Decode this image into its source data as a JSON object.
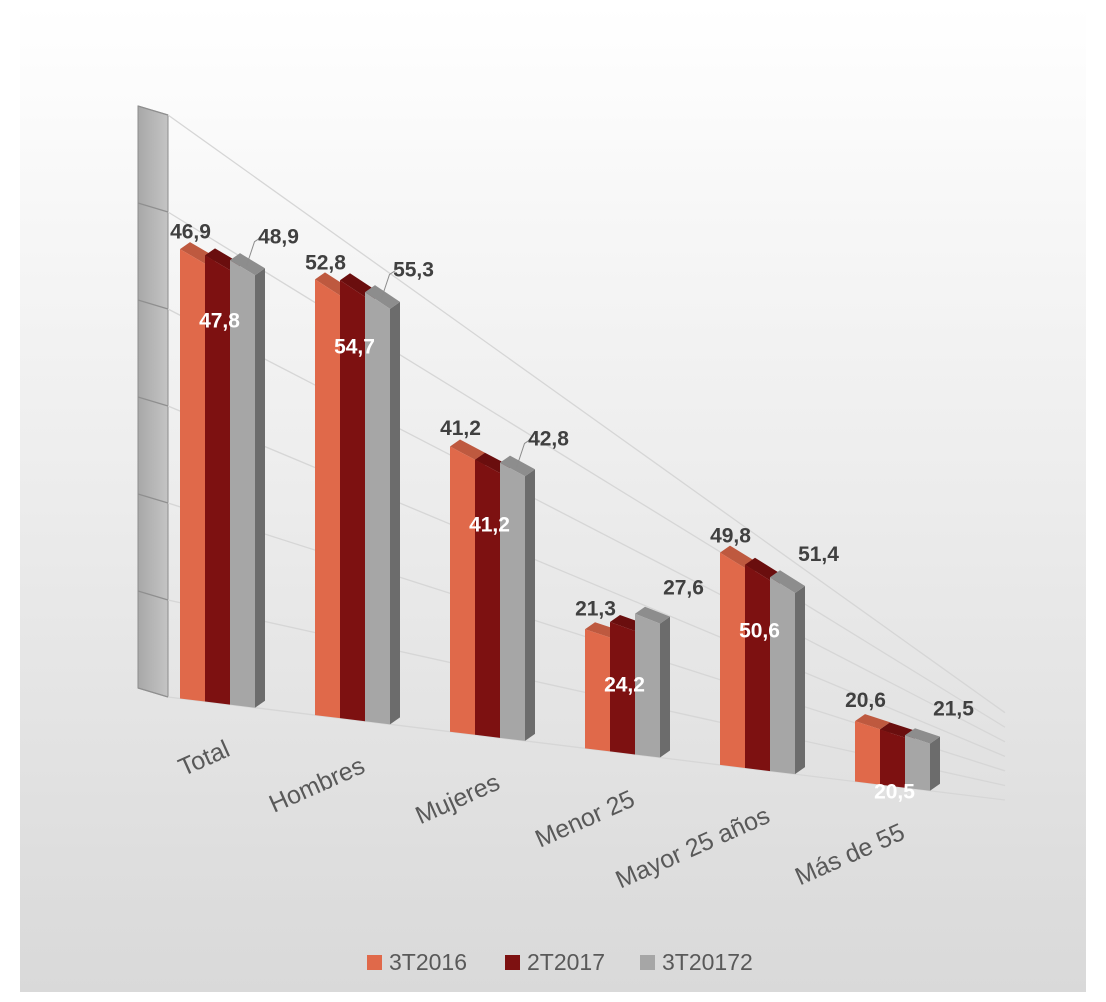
{
  "chart_data": {
    "type": "bar",
    "subtype": "3d-clustered-column",
    "categories": [
      "Total",
      "Hombres",
      "Mujeres",
      "Menor 25",
      "Mayor 25 años",
      "Más de 55"
    ],
    "series": [
      {
        "name": "3T2016",
        "values": [
          46.9,
          52.8,
          41.2,
          21.3,
          49.8,
          20.6
        ],
        "labels": [
          "46,9",
          "52,8",
          "41,2",
          "21,3",
          "49,8",
          "20,6"
        ]
      },
      {
        "name": "2T2017",
        "values": [
          47.8,
          54.7,
          41.2,
          24.2,
          50.6,
          20.5
        ],
        "labels": [
          "47,8",
          "54,7",
          "41,2",
          "24,2",
          "50,6",
          "20,5"
        ]
      },
      {
        "name": "3T20172",
        "values": [
          48.9,
          55.3,
          42.8,
          27.6,
          51.4,
          21.5
        ],
        "labels": [
          "48,9",
          "55,3",
          "42,8",
          "27,6",
          "51,4",
          "21,5"
        ]
      }
    ],
    "title": "",
    "xlabel": "",
    "ylabel": "",
    "ylim": [
      0,
      60
    ],
    "grid": true,
    "legend": "bottom",
    "colors": [
      "#E0694A",
      "#7D1111",
      "#A6A6A6"
    ],
    "background": [
      "#FFFFFF",
      "#D9D9D9"
    ]
  }
}
